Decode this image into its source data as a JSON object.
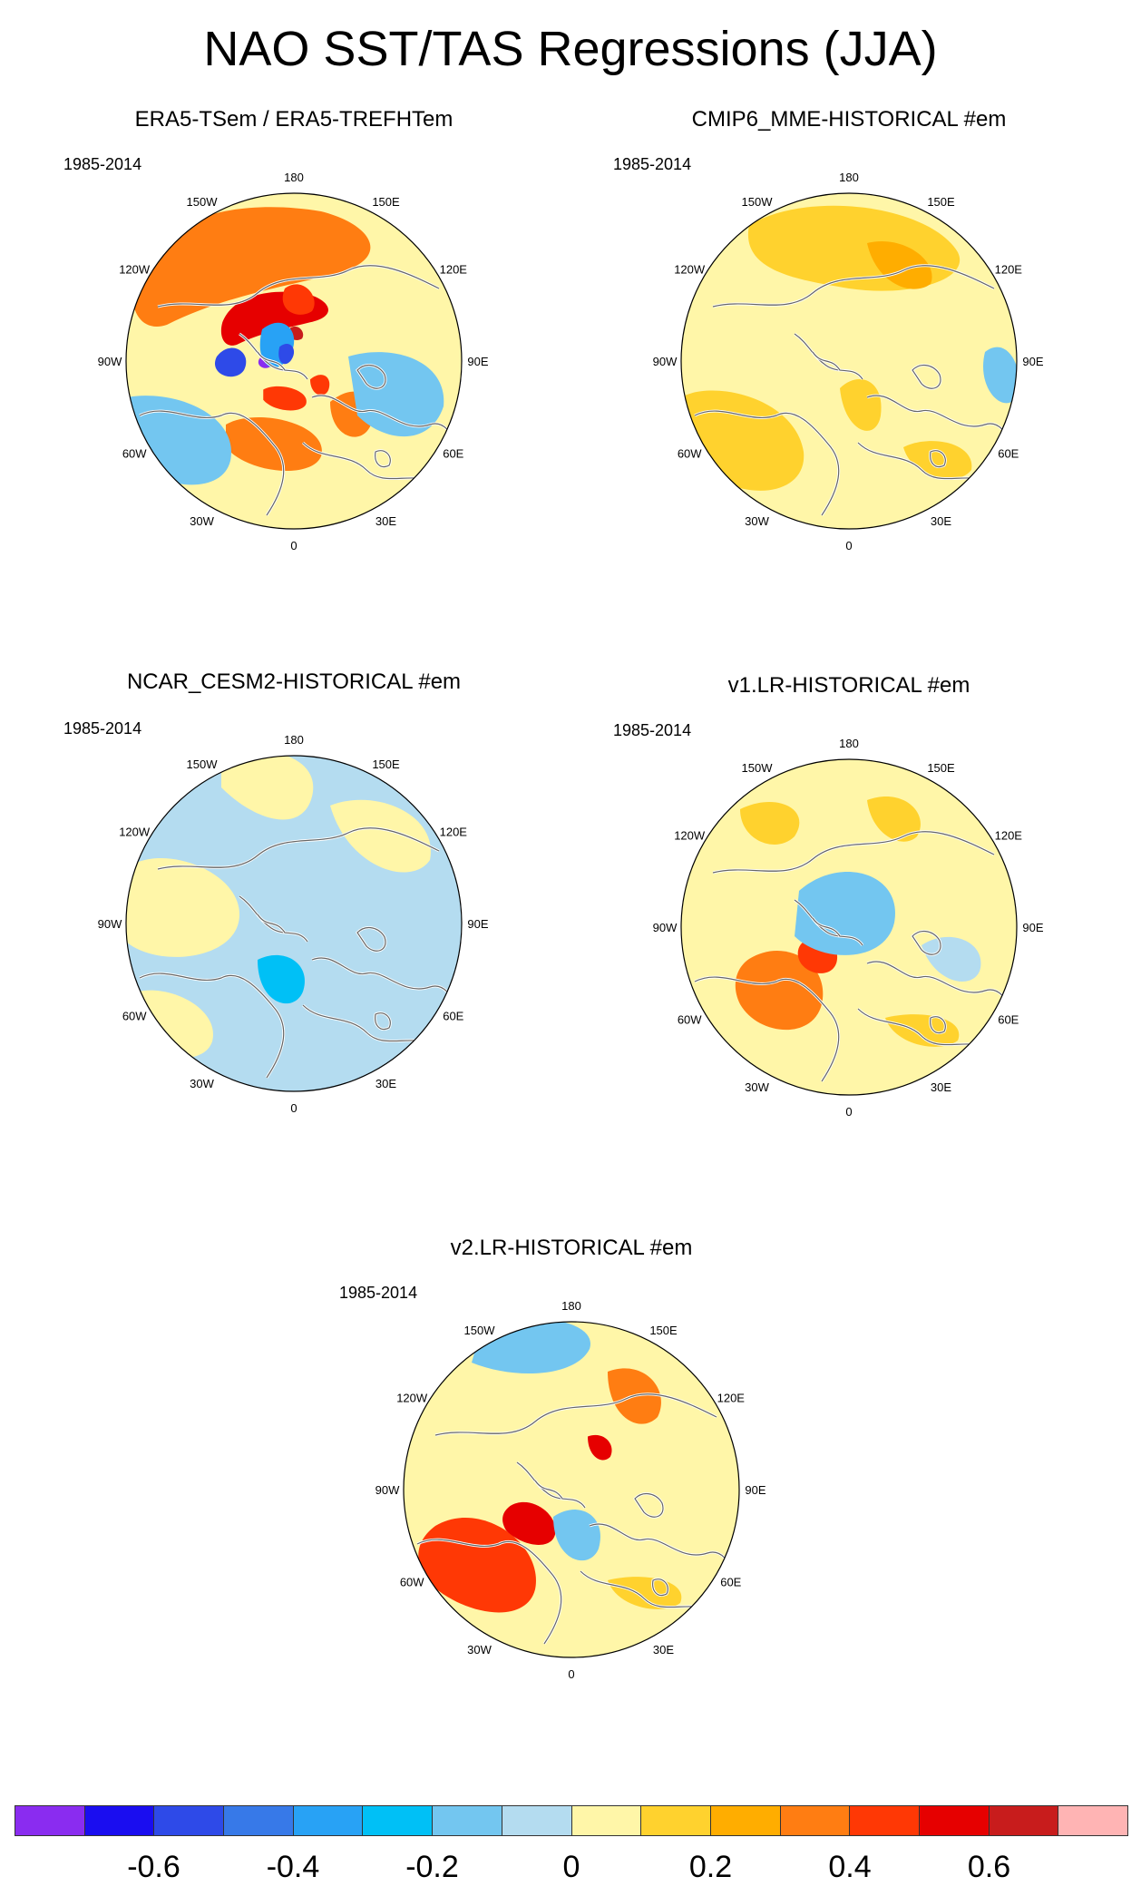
{
  "title": "NAO SST/TAS Regressions (JJA)",
  "panels": [
    {
      "id": "era5",
      "title": "ERA5-TSem / ERA5-TREFHTem",
      "period": "1985-2014",
      "mean_tone": 0.05,
      "anomalies": [
        {
          "region": "north pacific / bering",
          "value": 0.35
        },
        {
          "region": "chukchi sea",
          "value": 0.45
        },
        {
          "region": "canadian archipelago",
          "value": -0.6
        },
        {
          "region": "baffin bay",
          "value": -0.4
        },
        {
          "region": "labrador sea",
          "value": 0.3
        },
        {
          "region": "barents sea",
          "value": 0.3
        },
        {
          "region": "north atlantic",
          "value": -0.2
        },
        {
          "region": "eurasia",
          "value": -0.15
        }
      ]
    },
    {
      "id": "cmip6",
      "title": "CMIP6_MME-HISTORICAL  #em",
      "period": "1985-2014",
      "mean_tone": 0.05,
      "anomalies": [
        {
          "region": "north pacific",
          "value": 0.15
        },
        {
          "region": "east siberia",
          "value": 0.2
        },
        {
          "region": "subpolar atlantic",
          "value": 0.15
        },
        {
          "region": "scandinavia",
          "value": 0.15
        },
        {
          "region": "mediterranean",
          "value": 0.15
        },
        {
          "region": "india",
          "value": -0.15
        }
      ]
    },
    {
      "id": "cesm2",
      "title": "NCAR_CESM2-HISTORICAL  #em",
      "period": "1985-2014",
      "mean_tone": -0.1,
      "anomalies": [
        {
          "region": "north pacific",
          "value": 0.05
        },
        {
          "region": "north america",
          "value": 0.05
        },
        {
          "region": "subtropical atlantic",
          "value": 0.05
        },
        {
          "region": "greenland sea",
          "value": -0.25
        },
        {
          "region": "siberia",
          "value": 0.05
        }
      ]
    },
    {
      "id": "v1lr",
      "title": "v1.LR-HISTORICAL  #em",
      "period": "1985-2014",
      "mean_tone": 0.05,
      "anomalies": [
        {
          "region": "north atlantic",
          "value": 0.3
        },
        {
          "region": "arctic ocean",
          "value": -0.15
        },
        {
          "region": "north pacific",
          "value": 0.15
        },
        {
          "region": "east siberia",
          "value": 0.15
        },
        {
          "region": "central asia",
          "value": -0.1
        },
        {
          "region": "mediterranean",
          "value": 0.15
        }
      ]
    },
    {
      "id": "v2lr",
      "title": "v2.LR-HISTORICAL  #em",
      "period": "1985-2014",
      "mean_tone": 0.05,
      "anomalies": [
        {
          "region": "north atlantic",
          "value": 0.4
        },
        {
          "region": "north pacific",
          "value": -0.2
        },
        {
          "region": "bering / east siberia",
          "value": 0.35
        },
        {
          "region": "greenland sea",
          "value": -0.2
        },
        {
          "region": "subtropical atlantic",
          "value": -0.15
        },
        {
          "region": "mediterranean",
          "value": 0.15
        }
      ]
    }
  ],
  "longitude_labels": [
    "180",
    "150E",
    "120E",
    "90E",
    "60E",
    "30E",
    "0",
    "30W",
    "60W",
    "90W",
    "120W",
    "150W"
  ],
  "colorbar": {
    "colors": [
      "#8a2cf0",
      "#1a0df0",
      "#2e4ae8",
      "#3779e8",
      "#28a2f5",
      "#00c0f6",
      "#73c6f0",
      "#b4dcf0",
      "#fff6a8",
      "#ffd22e",
      "#ffad00",
      "#ff7d12",
      "#ff3805",
      "#e60000",
      "#c81c1c",
      "#ffb4b4"
    ],
    "labels": [
      "-0.6",
      "-0.4",
      "-0.2",
      "0",
      "0.2",
      "0.4",
      "0.6"
    ],
    "boundaries": [
      -0.7,
      -0.6,
      -0.5,
      -0.4,
      -0.3,
      -0.2,
      -0.1,
      0,
      0.1,
      0.2,
      0.3,
      0.4,
      0.5,
      0.6,
      0.7
    ]
  }
}
